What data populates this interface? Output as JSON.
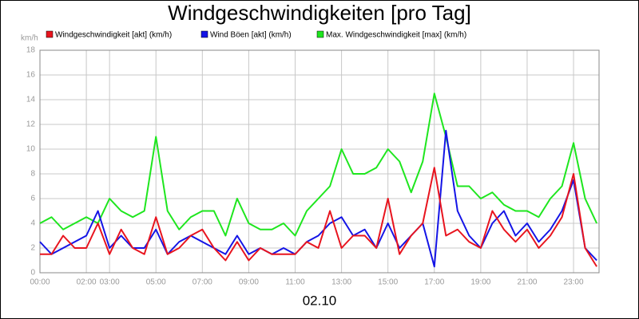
{
  "chart_data": {
    "type": "line",
    "title": "Windgeschwindigkeiten [pro Tag]",
    "x_label": "02.10",
    "y_label": "km/h",
    "x": [
      0,
      0.5,
      1,
      1.5,
      2,
      2.5,
      3,
      3.5,
      4,
      4.5,
      5,
      5.5,
      6,
      6.5,
      7,
      7.5,
      8,
      8.5,
      9,
      9.5,
      10,
      10.5,
      11,
      11.5,
      12,
      12.5,
      13,
      13.5,
      14,
      14.5,
      15,
      15.5,
      16,
      16.5,
      17,
      17.5,
      18,
      18.5,
      19,
      19.5,
      20,
      20.5,
      21,
      21.5,
      22,
      22.5,
      23,
      23.5,
      24
    ],
    "series": [
      {
        "name": "Windgeschwindigkeit [akt] (km/h)",
        "color": "#e8141e",
        "values": [
          1.5,
          1.5,
          3,
          2,
          2,
          4,
          1.5,
          3.5,
          2,
          1.5,
          4.5,
          1.5,
          2,
          3,
          3.5,
          2,
          1,
          2.5,
          1,
          2,
          1.5,
          1.5,
          1.5,
          2.5,
          2,
          5,
          2,
          3,
          3,
          2,
          6,
          1.5,
          3,
          4,
          8.5,
          3,
          3.5,
          2.5,
          2,
          5,
          3.5,
          2.5,
          3.5,
          2,
          3,
          4.5,
          8,
          2,
          0.5
        ]
      },
      {
        "name": "Wind Böen [akt] (km/h)",
        "color": "#1414e6",
        "values": [
          2.5,
          1.5,
          2,
          2.5,
          3,
          5,
          2,
          3,
          2,
          2,
          3.5,
          1.5,
          2.5,
          3,
          2.5,
          2,
          1.5,
          3,
          1.5,
          2,
          1.5,
          2,
          1.5,
          2.5,
          3,
          4,
          4.5,
          3,
          3.5,
          2,
          4,
          2,
          3,
          4,
          0.5,
          11.5,
          5,
          3,
          2,
          4,
          5,
          3,
          4,
          2.5,
          3.5,
          5,
          7.5,
          2,
          1
        ]
      },
      {
        "name": "Max. Windgeschwindigkeit [max] (km/h)",
        "color": "#1ee61e",
        "values": [
          4,
          4.5,
          3.5,
          4,
          4.5,
          4,
          6,
          5,
          4.5,
          5,
          11,
          5,
          3.5,
          4.5,
          5,
          5,
          3,
          6,
          4,
          3.5,
          3.5,
          4,
          3,
          5,
          6,
          7,
          10,
          8,
          8,
          8.5,
          10,
          9,
          6.5,
          9,
          14.5,
          11,
          7,
          7,
          6,
          6.5,
          5.5,
          5,
          5,
          4.5,
          6,
          7,
          10.5,
          6,
          4
        ]
      }
    ],
    "xlim": [
      0,
      24.1
    ],
    "xticks": [
      {
        "value": 0,
        "label": "00:00"
      },
      {
        "value": 2,
        "label": "02:00"
      },
      {
        "value": 3,
        "label": "03:00"
      },
      {
        "value": 5,
        "label": "05:00"
      },
      {
        "value": 7,
        "label": "07:00"
      },
      {
        "value": 9,
        "label": "09:00"
      },
      {
        "value": 11,
        "label": "11:00"
      },
      {
        "value": 13,
        "label": "13:00"
      },
      {
        "value": 15,
        "label": "15:00"
      },
      {
        "value": 17,
        "label": "17:00"
      },
      {
        "value": 19,
        "label": "19:00"
      },
      {
        "value": 21,
        "label": "21:00"
      },
      {
        "value": 23,
        "label": "23:00"
      }
    ],
    "ylim": [
      0,
      18
    ],
    "yticks": [
      0,
      2,
      4,
      6,
      8,
      10,
      12,
      14,
      16,
      18
    ],
    "grid": true
  }
}
